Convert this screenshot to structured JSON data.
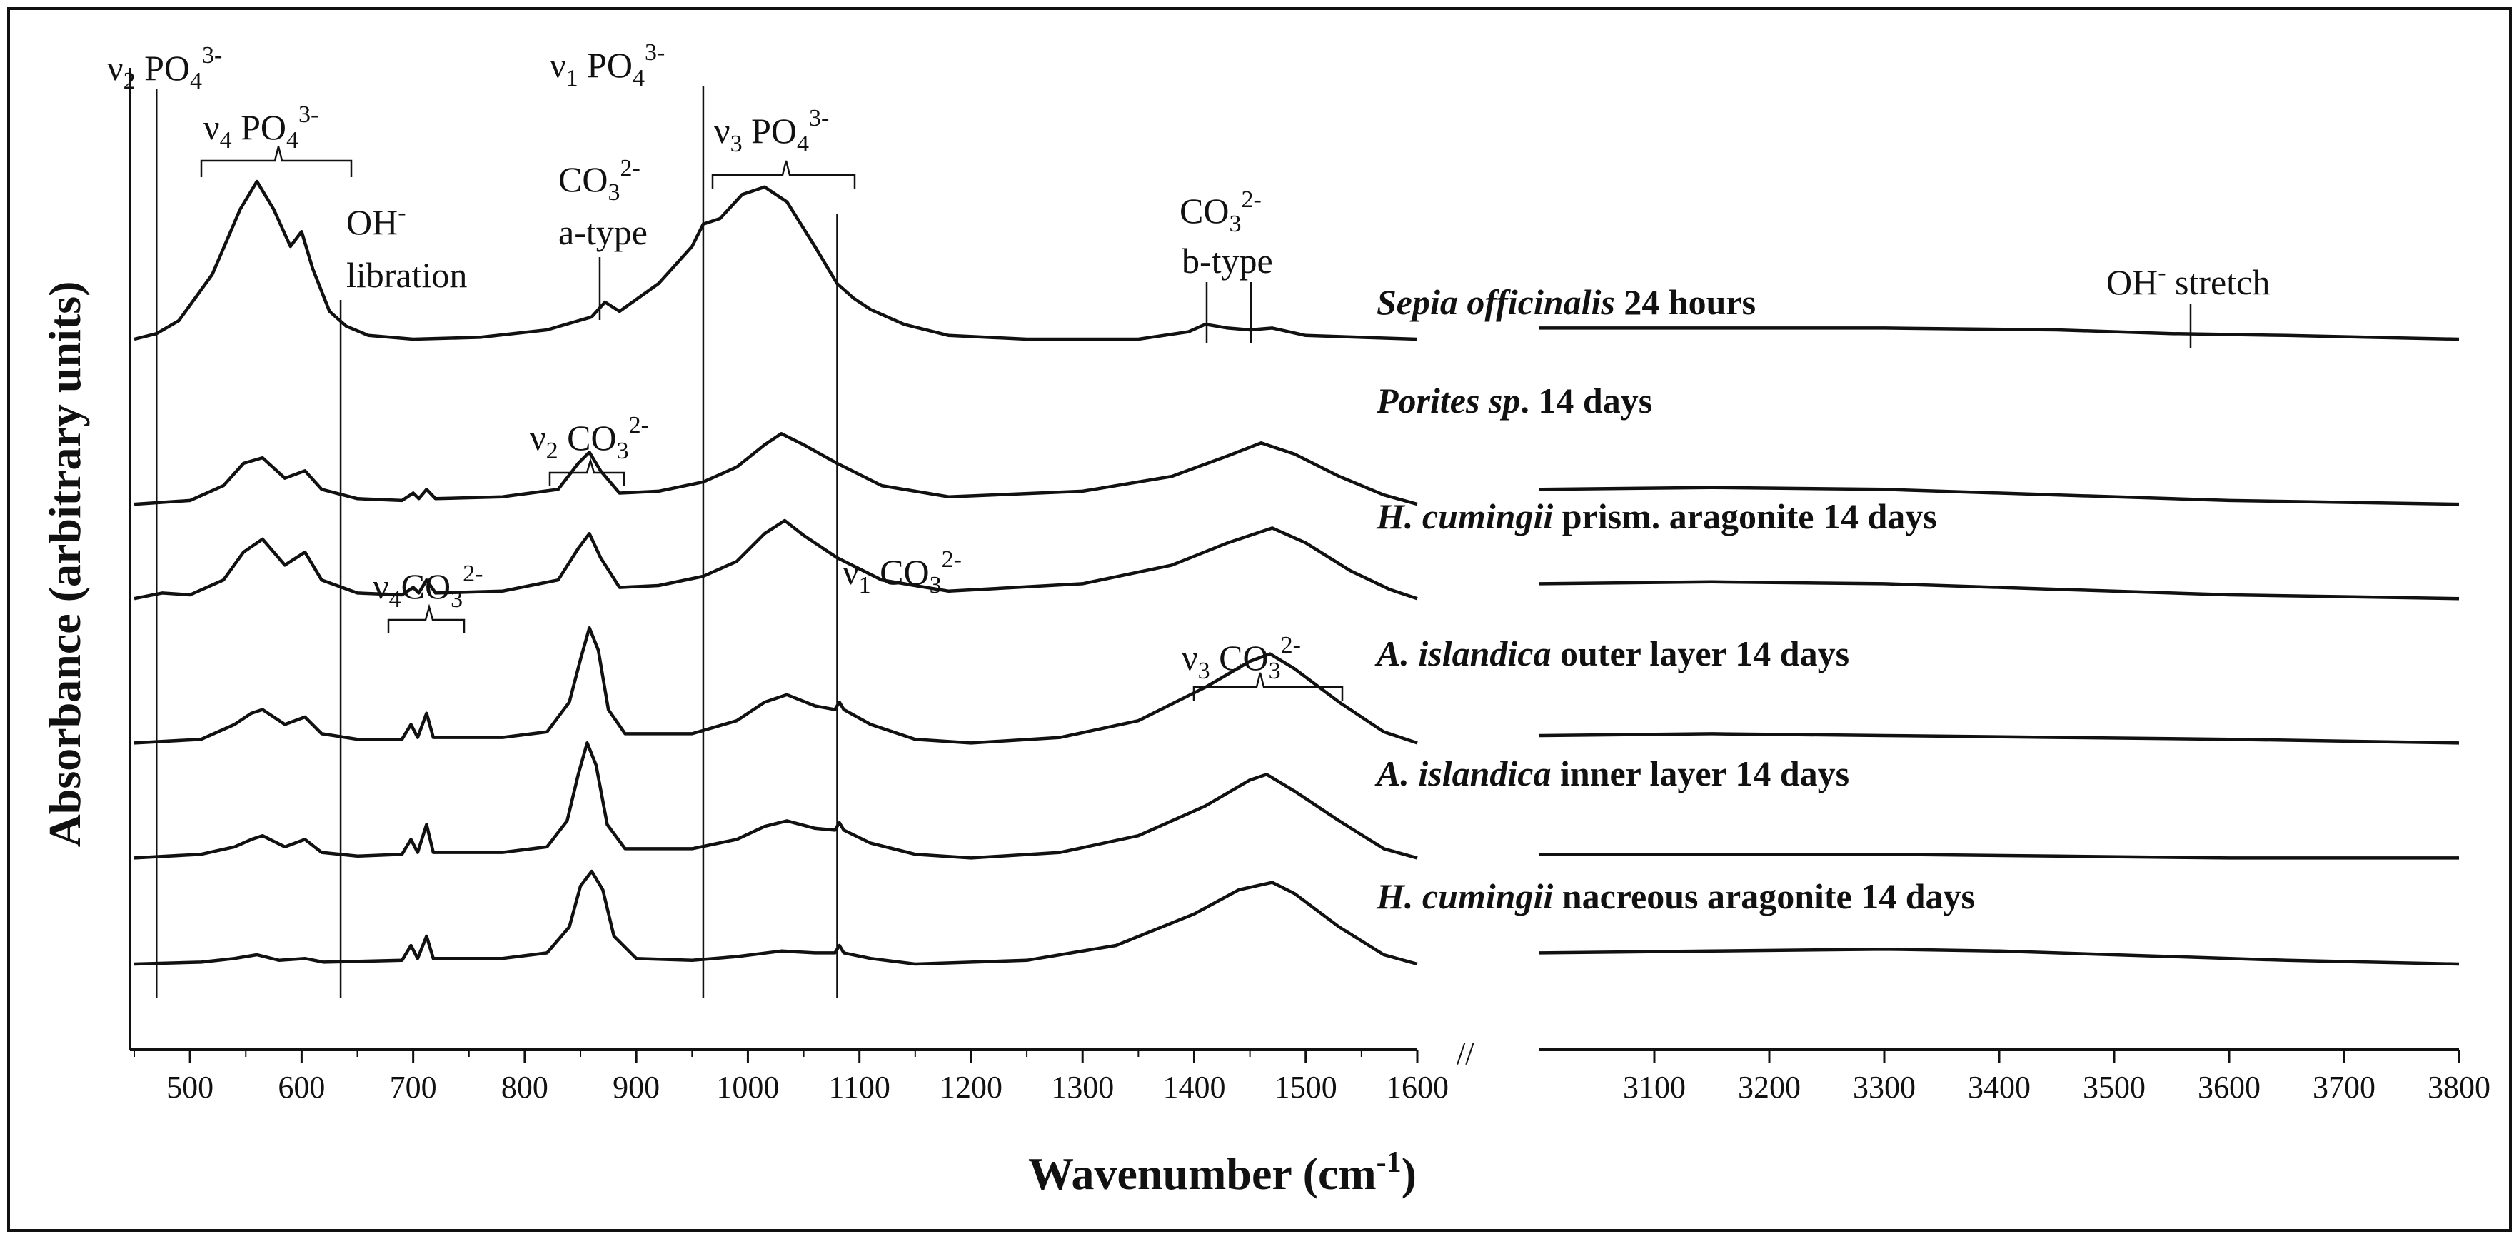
{
  "chart_data": {
    "type": "line",
    "title": "",
    "xlabel": "Wavenumber (cm",
    "xlabel_sup": "-1",
    "xlabel_close": ")",
    "ylabel": "Absorbance (arbitrary units)",
    "xlim_left": [
      450,
      1600
    ],
    "xlim_right": [
      3000,
      3800
    ],
    "xticks_left": [
      "500",
      "600",
      "700",
      "800",
      "900",
      "1000",
      "1100",
      "1200",
      "1300",
      "1400",
      "1500",
      "1600"
    ],
    "xticks_right": [
      "3100",
      "3200",
      "3300",
      "3400",
      "3500",
      "3600",
      "3700",
      "3800"
    ],
    "axis_break": "//",
    "series": [
      {
        "id": "sepia",
        "italic": "Sepia officinalis",
        "rest": " 24 hours",
        "baseline": 2.0,
        "scale": 1.0,
        "left": [
          [
            450,
            0.0
          ],
          [
            470,
            0.03
          ],
          [
            490,
            0.1
          ],
          [
            520,
            0.35
          ],
          [
            545,
            0.7
          ],
          [
            560,
            0.85
          ],
          [
            575,
            0.7
          ],
          [
            590,
            0.5
          ],
          [
            600,
            0.58
          ],
          [
            610,
            0.38
          ],
          [
            625,
            0.15
          ],
          [
            640,
            0.07
          ],
          [
            660,
            0.02
          ],
          [
            700,
            0.0
          ],
          [
            760,
            0.01
          ],
          [
            820,
            0.05
          ],
          [
            860,
            0.12
          ],
          [
            872,
            0.2
          ],
          [
            885,
            0.15
          ],
          [
            920,
            0.3
          ],
          [
            950,
            0.5
          ],
          [
            960,
            0.62
          ],
          [
            975,
            0.65
          ],
          [
            995,
            0.78
          ],
          [
            1015,
            0.82
          ],
          [
            1035,
            0.74
          ],
          [
            1060,
            0.5
          ],
          [
            1080,
            0.3
          ],
          [
            1095,
            0.22
          ],
          [
            1110,
            0.16
          ],
          [
            1140,
            0.08
          ],
          [
            1180,
            0.02
          ],
          [
            1250,
            0.0
          ],
          [
            1350,
            0.0
          ],
          [
            1395,
            0.04
          ],
          [
            1410,
            0.08
          ],
          [
            1430,
            0.06
          ],
          [
            1450,
            0.05
          ],
          [
            1470,
            0.06
          ],
          [
            1500,
            0.02
          ],
          [
            1600,
            0.0
          ]
        ],
        "right": [
          [
            3000,
            0.06
          ],
          [
            3150,
            0.06
          ],
          [
            3300,
            0.06
          ],
          [
            3450,
            0.05
          ],
          [
            3550,
            0.03
          ],
          [
            3650,
            0.02
          ],
          [
            3800,
            0.0
          ]
        ]
      },
      {
        "id": "porites",
        "italic": "Porites sp",
        "rest": ". 14 days",
        "baseline": 1.44,
        "scale": 1.0,
        "left": [
          [
            450,
            0.0
          ],
          [
            500,
            0.02
          ],
          [
            530,
            0.1
          ],
          [
            548,
            0.22
          ],
          [
            565,
            0.25
          ],
          [
            585,
            0.14
          ],
          [
            603,
            0.18
          ],
          [
            618,
            0.08
          ],
          [
            650,
            0.03
          ],
          [
            690,
            0.02
          ],
          [
            700,
            0.06
          ],
          [
            705,
            0.03
          ],
          [
            712,
            0.08
          ],
          [
            720,
            0.03
          ],
          [
            780,
            0.04
          ],
          [
            830,
            0.08
          ],
          [
            848,
            0.22
          ],
          [
            858,
            0.28
          ],
          [
            868,
            0.18
          ],
          [
            885,
            0.06
          ],
          [
            920,
            0.07
          ],
          [
            960,
            0.12
          ],
          [
            990,
            0.2
          ],
          [
            1015,
            0.32
          ],
          [
            1030,
            0.38
          ],
          [
            1050,
            0.32
          ],
          [
            1080,
            0.22
          ],
          [
            1120,
            0.1
          ],
          [
            1180,
            0.04
          ],
          [
            1300,
            0.07
          ],
          [
            1380,
            0.15
          ],
          [
            1430,
            0.26
          ],
          [
            1460,
            0.33
          ],
          [
            1490,
            0.27
          ],
          [
            1530,
            0.15
          ],
          [
            1570,
            0.05
          ],
          [
            1600,
            0.0
          ]
        ],
        "right": [
          [
            3000,
            0.08
          ],
          [
            3150,
            0.09
          ],
          [
            3300,
            0.08
          ],
          [
            3450,
            0.05
          ],
          [
            3600,
            0.02
          ],
          [
            3800,
            0.0
          ]
        ]
      },
      {
        "id": "hcum-prism",
        "italic": "H. cumingii",
        "rest": " prism. aragonite 14 days",
        "baseline": 1.12,
        "scale": 1.0,
        "left": [
          [
            450,
            0.0
          ],
          [
            475,
            0.03
          ],
          [
            500,
            0.02
          ],
          [
            530,
            0.1
          ],
          [
            548,
            0.25
          ],
          [
            565,
            0.32
          ],
          [
            585,
            0.18
          ],
          [
            603,
            0.25
          ],
          [
            618,
            0.1
          ],
          [
            650,
            0.03
          ],
          [
            690,
            0.02
          ],
          [
            700,
            0.06
          ],
          [
            705,
            0.03
          ],
          [
            712,
            0.1
          ],
          [
            720,
            0.03
          ],
          [
            780,
            0.04
          ],
          [
            830,
            0.1
          ],
          [
            848,
            0.27
          ],
          [
            858,
            0.35
          ],
          [
            868,
            0.22
          ],
          [
            885,
            0.06
          ],
          [
            920,
            0.07
          ],
          [
            960,
            0.12
          ],
          [
            990,
            0.2
          ],
          [
            1015,
            0.35
          ],
          [
            1033,
            0.42
          ],
          [
            1050,
            0.34
          ],
          [
            1080,
            0.22
          ],
          [
            1120,
            0.1
          ],
          [
            1180,
            0.04
          ],
          [
            1300,
            0.08
          ],
          [
            1380,
            0.18
          ],
          [
            1430,
            0.3
          ],
          [
            1470,
            0.38
          ],
          [
            1500,
            0.3
          ],
          [
            1540,
            0.15
          ],
          [
            1575,
            0.05
          ],
          [
            1600,
            0.0
          ]
        ],
        "right": [
          [
            3000,
            0.08
          ],
          [
            3150,
            0.09
          ],
          [
            3300,
            0.08
          ],
          [
            3450,
            0.05
          ],
          [
            3600,
            0.02
          ],
          [
            3800,
            0.0
          ]
        ]
      },
      {
        "id": "aisl-outer",
        "italic": "A. islandica",
        "rest": " outer layer 14 days",
        "baseline": 0.63,
        "scale": 1.0,
        "left": [
          [
            450,
            0.0
          ],
          [
            510,
            0.02
          ],
          [
            540,
            0.1
          ],
          [
            555,
            0.16
          ],
          [
            565,
            0.18
          ],
          [
            585,
            0.1
          ],
          [
            603,
            0.14
          ],
          [
            618,
            0.05
          ],
          [
            650,
            0.02
          ],
          [
            690,
            0.02
          ],
          [
            698,
            0.1
          ],
          [
            704,
            0.03
          ],
          [
            712,
            0.16
          ],
          [
            718,
            0.03
          ],
          [
            780,
            0.03
          ],
          [
            820,
            0.06
          ],
          [
            840,
            0.22
          ],
          [
            850,
            0.45
          ],
          [
            858,
            0.62
          ],
          [
            866,
            0.5
          ],
          [
            875,
            0.18
          ],
          [
            890,
            0.05
          ],
          [
            950,
            0.05
          ],
          [
            990,
            0.12
          ],
          [
            1015,
            0.22
          ],
          [
            1035,
            0.26
          ],
          [
            1060,
            0.2
          ],
          [
            1078,
            0.18
          ],
          [
            1082,
            0.22
          ],
          [
            1086,
            0.18
          ],
          [
            1110,
            0.1
          ],
          [
            1150,
            0.02
          ],
          [
            1200,
            0.0
          ],
          [
            1280,
            0.03
          ],
          [
            1350,
            0.12
          ],
          [
            1410,
            0.3
          ],
          [
            1450,
            0.44
          ],
          [
            1468,
            0.48
          ],
          [
            1490,
            0.4
          ],
          [
            1530,
            0.22
          ],
          [
            1570,
            0.06
          ],
          [
            1600,
            0.0
          ]
        ],
        "right": [
          [
            3000,
            0.04
          ],
          [
            3150,
            0.05
          ],
          [
            3300,
            0.04
          ],
          [
            3450,
            0.03
          ],
          [
            3600,
            0.02
          ],
          [
            3800,
            0.0
          ]
        ]
      },
      {
        "id": "aisl-inner",
        "italic": "A. islandica",
        "rest": " inner layer 14 days",
        "baseline": 0.24,
        "scale": 1.0,
        "left": [
          [
            450,
            0.0
          ],
          [
            510,
            0.02
          ],
          [
            540,
            0.06
          ],
          [
            555,
            0.1
          ],
          [
            565,
            0.12
          ],
          [
            585,
            0.06
          ],
          [
            603,
            0.1
          ],
          [
            618,
            0.03
          ],
          [
            650,
            0.01
          ],
          [
            690,
            0.02
          ],
          [
            698,
            0.1
          ],
          [
            704,
            0.03
          ],
          [
            712,
            0.18
          ],
          [
            718,
            0.03
          ],
          [
            780,
            0.03
          ],
          [
            820,
            0.06
          ],
          [
            838,
            0.2
          ],
          [
            848,
            0.45
          ],
          [
            856,
            0.62
          ],
          [
            864,
            0.5
          ],
          [
            874,
            0.18
          ],
          [
            890,
            0.05
          ],
          [
            950,
            0.05
          ],
          [
            990,
            0.1
          ],
          [
            1015,
            0.17
          ],
          [
            1035,
            0.2
          ],
          [
            1060,
            0.16
          ],
          [
            1078,
            0.15
          ],
          [
            1082,
            0.19
          ],
          [
            1086,
            0.15
          ],
          [
            1110,
            0.08
          ],
          [
            1150,
            0.02
          ],
          [
            1200,
            0.0
          ],
          [
            1280,
            0.03
          ],
          [
            1350,
            0.12
          ],
          [
            1410,
            0.28
          ],
          [
            1450,
            0.42
          ],
          [
            1465,
            0.45
          ],
          [
            1490,
            0.36
          ],
          [
            1530,
            0.2
          ],
          [
            1570,
            0.05
          ],
          [
            1600,
            0.0
          ]
        ],
        "right": [
          [
            3000,
            0.02
          ],
          [
            3150,
            0.02
          ],
          [
            3300,
            0.02
          ],
          [
            3450,
            0.01
          ],
          [
            3600,
            0.0
          ],
          [
            3800,
            0.0
          ]
        ]
      },
      {
        "id": "hcum-nacre",
        "italic": "H. cumingii",
        "rest": " nacreous aragonite 14 days",
        "baseline": -0.12,
        "scale": 1.0,
        "left": [
          [
            450,
            0.0
          ],
          [
            510,
            0.01
          ],
          [
            540,
            0.03
          ],
          [
            560,
            0.05
          ],
          [
            580,
            0.02
          ],
          [
            603,
            0.03
          ],
          [
            620,
            0.01
          ],
          [
            690,
            0.02
          ],
          [
            698,
            0.1
          ],
          [
            704,
            0.03
          ],
          [
            712,
            0.15
          ],
          [
            718,
            0.03
          ],
          [
            780,
            0.03
          ],
          [
            820,
            0.06
          ],
          [
            840,
            0.2
          ],
          [
            850,
            0.42
          ],
          [
            860,
            0.5
          ],
          [
            870,
            0.4
          ],
          [
            880,
            0.15
          ],
          [
            900,
            0.03
          ],
          [
            950,
            0.02
          ],
          [
            990,
            0.04
          ],
          [
            1030,
            0.07
          ],
          [
            1060,
            0.06
          ],
          [
            1078,
            0.06
          ],
          [
            1082,
            0.1
          ],
          [
            1086,
            0.06
          ],
          [
            1110,
            0.03
          ],
          [
            1150,
            0.0
          ],
          [
            1250,
            0.02
          ],
          [
            1330,
            0.1
          ],
          [
            1400,
            0.27
          ],
          [
            1440,
            0.4
          ],
          [
            1470,
            0.44
          ],
          [
            1490,
            0.38
          ],
          [
            1530,
            0.2
          ],
          [
            1570,
            0.05
          ],
          [
            1600,
            0.0
          ]
        ],
        "right": [
          [
            3000,
            0.06
          ],
          [
            3150,
            0.07
          ],
          [
            3300,
            0.08
          ],
          [
            3400,
            0.07
          ],
          [
            3550,
            0.04
          ],
          [
            3650,
            0.02
          ],
          [
            3800,
            0.0
          ]
        ]
      }
    ],
    "vlines": [
      470,
      635,
      960,
      1080
    ],
    "annotations": {
      "v2_po4": {
        "pre": "ν",
        "sub": "2",
        "mid": " PO",
        "sub2": "4",
        "sup": "3-"
      },
      "v4_po4": {
        "pre": "ν",
        "sub": "4",
        "mid": " PO",
        "sub2": "4",
        "sup": "3-"
      },
      "v1_po4": {
        "pre": "ν",
        "sub": "1",
        "mid": " PO",
        "sub2": "4",
        "sup": "3-"
      },
      "v3_po4": {
        "pre": "ν",
        "sub": "3",
        "mid": " PO",
        "sub2": "4",
        "sup": "3-"
      },
      "oh_lib_1": "OH",
      "oh_lib_sup": "-",
      "oh_lib_2": "libration",
      "co3_a_1": "CO",
      "co3_a_sub": "3",
      "co3_a_sup": "2-",
      "co3_a_2": "a-type",
      "co3_b_1": "CO",
      "co3_b_sub": "3",
      "co3_b_sup": "2-",
      "co3_b_2": "b-type",
      "v2_co3": {
        "pre": "ν",
        "sub": "2",
        "mid": " CO",
        "sub2": "3",
        "sup": "2-"
      },
      "v4_co3": {
        "pre": "ν",
        "sub": "4",
        "mid": "CO",
        "sub2": "3",
        "sup": "2-"
      },
      "v1_co3": {
        "pre": "ν",
        "sub": "1",
        "mid": " CO",
        "sub2": "3",
        "sup": "2-"
      },
      "v3_co3": {
        "pre": "ν",
        "sub": "3",
        "mid": " CO",
        "sub2": "3",
        "sup": "2-"
      },
      "oh_stretch_1": "OH",
      "oh_stretch_sup": "-",
      "oh_stretch_2": " stretch"
    }
  }
}
